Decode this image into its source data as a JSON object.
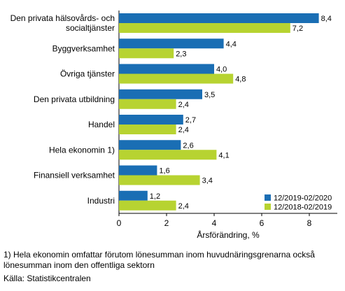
{
  "chart_data": {
    "type": "bar",
    "orientation": "horizontal",
    "categories": [
      [
        "Den privata hälsovårds- och",
        "socialtjänster"
      ],
      [
        "Byggverksamhet"
      ],
      [
        "Övriga tjänster"
      ],
      [
        "Den privata utbildning"
      ],
      [
        "Handel"
      ],
      [
        "Hela ekonomin 1)"
      ],
      [
        "Finansiell verksamhet"
      ],
      [
        "Industri"
      ]
    ],
    "series": [
      {
        "name": "12/2019-02/2020",
        "color": "#1a6eb4",
        "values": [
          8.4,
          4.4,
          4.0,
          3.5,
          2.7,
          2.6,
          1.6,
          1.2
        ],
        "labels": [
          "8,4",
          "4,4",
          "4,0",
          "3,5",
          "2,7",
          "2,6",
          "1,6",
          "1,2"
        ]
      },
      {
        "name": "12/2018-02/2019",
        "color": "#b7d331",
        "values": [
          7.2,
          2.3,
          4.8,
          2.4,
          2.4,
          4.1,
          3.4,
          2.4
        ],
        "labels": [
          "7,2",
          "2,3",
          "4,8",
          "2,4",
          "2,4",
          "4,1",
          "3,4",
          "2,4"
        ]
      }
    ],
    "xlim": [
      0,
      9
    ],
    "xticks": [
      0,
      2,
      4,
      6,
      8
    ],
    "xlabel": "Årsförändring, %",
    "grid": false,
    "legend": "bottom-right"
  },
  "footnote": {
    "line1": "1) Hela ekonomin omfattar förutom lönesumman inom huvudnäringsgrenarna också",
    "line2": "lönesumman inom den offentliga sektorn"
  },
  "source": "Källa: Statistikcentralen"
}
